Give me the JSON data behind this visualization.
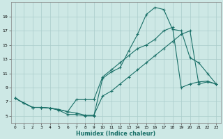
{
  "background_color": "#cde8e5",
  "grid_color": "#aaccca",
  "line_color": "#1a7068",
  "xlabel": "Humidex (Indice chaleur)",
  "xmin": -0.5,
  "xmax": 23.5,
  "ymin": 4.0,
  "ymax": 21.0,
  "yticks": [
    5,
    7,
    9,
    11,
    13,
    15,
    17,
    19
  ],
  "xticks": [
    0,
    1,
    2,
    3,
    4,
    5,
    6,
    7,
    8,
    9,
    10,
    11,
    12,
    13,
    14,
    15,
    16,
    17,
    18,
    19,
    20,
    21,
    22,
    23
  ],
  "line1": {
    "x": [
      0,
      1,
      2,
      3,
      4,
      5,
      6,
      7,
      8,
      9,
      10,
      11,
      12,
      13,
      14,
      15,
      16,
      17,
      18,
      19,
      20,
      21,
      22,
      23
    ],
    "y": [
      7.5,
      6.8,
      6.2,
      6.2,
      6.1,
      5.8,
      5.2,
      5.2,
      5.0,
      5.0,
      10.3,
      11.2,
      11.8,
      14.2,
      16.5,
      19.3,
      20.3,
      20.0,
      17.2,
      17.0,
      13.2,
      12.5,
      11.0,
      9.5
    ]
  },
  "line2": {
    "x": [
      0,
      1,
      2,
      3,
      4,
      5,
      6,
      7,
      8,
      9,
      10,
      11,
      12,
      13,
      14,
      15,
      16,
      17,
      18,
      19,
      20,
      21,
      22,
      23
    ],
    "y": [
      7.5,
      6.8,
      6.2,
      6.2,
      6.1,
      5.9,
      5.6,
      5.4,
      5.1,
      5.1,
      7.8,
      8.5,
      9.5,
      10.5,
      11.5,
      12.5,
      13.5,
      14.5,
      15.5,
      16.5,
      17.0,
      9.5,
      9.8,
      9.5
    ]
  },
  "line3": {
    "x": [
      0,
      1,
      2,
      3,
      4,
      5,
      6,
      7,
      8,
      9,
      10,
      11,
      12,
      13,
      14,
      15,
      16,
      17,
      18,
      19,
      20,
      21,
      22,
      23
    ],
    "y": [
      7.5,
      6.8,
      6.2,
      6.2,
      6.1,
      5.9,
      5.6,
      7.3,
      7.3,
      7.3,
      10.5,
      11.5,
      12.5,
      13.5,
      14.5,
      15.0,
      15.8,
      17.0,
      17.5,
      9.0,
      9.5,
      9.8,
      9.9,
      9.5
    ]
  }
}
